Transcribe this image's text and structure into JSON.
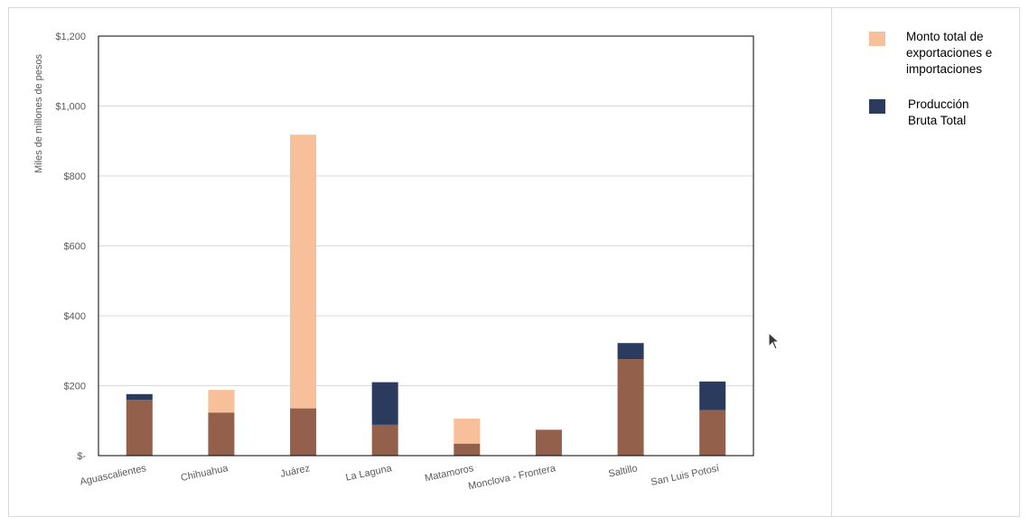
{
  "chart_data": {
    "type": "bar",
    "title": "",
    "xlabel": "",
    "ylabel": "Miles de millones de pesos",
    "ylim": [
      0,
      1200
    ],
    "yticks": [
      0,
      200,
      400,
      600,
      800,
      1000,
      1200
    ],
    "yticklabels": [
      "$-",
      "$200",
      "$400",
      "$600",
      "$800",
      "$1,000",
      "$1,200"
    ],
    "grid": true,
    "legend_position": "right",
    "categories": [
      "Aguascalientes",
      "Chihuahua",
      "Juárez",
      "La Laguna",
      "Matamoros",
      "Monclova - Frontera",
      "Saltillo",
      "San Luis Potosí"
    ],
    "series": [
      {
        "name_lines": [
          "Monto total de",
          "exportaciones e",
          "importaciones"
        ],
        "color": "#f7bf9a",
        "values": [
          160,
          188,
          918,
          88,
          106,
          74,
          276,
          130
        ]
      },
      {
        "name_lines": [
          "Producción",
          "Bruta Total"
        ],
        "color": "#2a3b5e",
        "values": [
          176,
          123,
          135,
          210,
          34,
          74,
          322,
          212
        ]
      }
    ],
    "overlap_color": "#93604c"
  }
}
